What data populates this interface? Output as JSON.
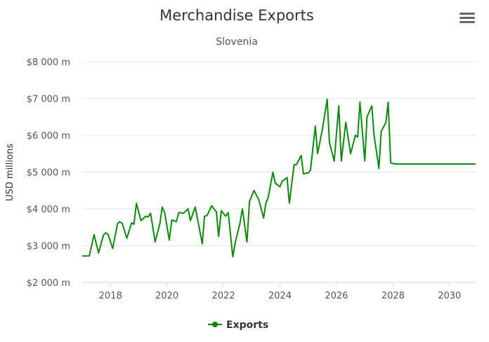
{
  "chart_data": {
    "type": "line",
    "title": "Merchandise Exports",
    "subtitle": "Slovenia",
    "ylabel": "USD millions",
    "xlabel": "",
    "ylim": [
      2000,
      8000
    ],
    "xlim": [
      2017.0,
      2030.95
    ],
    "yticks": [
      2000,
      3000,
      4000,
      5000,
      6000,
      7000,
      8000
    ],
    "ytick_labels": [
      "$2 000 m",
      "$3 000 m",
      "$4 000 m",
      "$5 000 m",
      "$6 000 m",
      "$7 000 m",
      "$8 000 m"
    ],
    "xticks": [
      2018,
      2020,
      2022,
      2024,
      2026,
      2028,
      2030
    ],
    "xtick_labels": [
      "2018",
      "2020",
      "2022",
      "2024",
      "2026",
      "2028",
      "2030"
    ],
    "grid": true,
    "legend_position": "bottom",
    "series": [
      {
        "name": "Exports",
        "color": "#0b8a0b",
        "x": [
          2017.0,
          2017.25,
          2017.42,
          2017.58,
          2017.75,
          2017.83,
          2017.92,
          2018.08,
          2018.25,
          2018.33,
          2018.42,
          2018.58,
          2018.75,
          2018.83,
          2018.92,
          2019.08,
          2019.25,
          2019.33,
          2019.42,
          2019.58,
          2019.75,
          2019.83,
          2019.92,
          2020.08,
          2020.17,
          2020.33,
          2020.42,
          2020.58,
          2020.75,
          2020.83,
          2021.0,
          2021.25,
          2021.33,
          2021.42,
          2021.58,
          2021.75,
          2021.83,
          2021.92,
          2022.08,
          2022.17,
          2022.33,
          2022.42,
          2022.58,
          2022.67,
          2022.83,
          2022.92,
          2023.08,
          2023.25,
          2023.42,
          2023.5,
          2023.58,
          2023.75,
          2023.83,
          2024.0,
          2024.08,
          2024.25,
          2024.33,
          2024.5,
          2024.58,
          2024.75,
          2024.83,
          2025.0,
          2025.08,
          2025.25,
          2025.33,
          2025.5,
          2025.67,
          2025.75,
          2025.92,
          2026.08,
          2026.17,
          2026.33,
          2026.5,
          2026.67,
          2026.75,
          2026.83,
          2027.0,
          2027.08,
          2027.25,
          2027.33,
          2027.5,
          2027.58,
          2027.75,
          2027.83,
          2027.92,
          2028.08,
          2028.25,
          2028.33,
          2028.42,
          2028.58,
          2028.67,
          2028.75,
          2028.92,
          2029.0,
          2029.08,
          2029.25,
          2029.33,
          2029.5,
          2029.58,
          2029.75,
          2029.83,
          2030.0,
          2030.08,
          2030.25,
          2030.33,
          2030.5,
          2030.58,
          2030.75,
          2030.83,
          2030.92
        ],
        "values": [
          2720,
          2720,
          3300,
          2800,
          3280,
          3350,
          3300,
          2920,
          3600,
          3650,
          3600,
          3200,
          3620,
          3580,
          4150,
          3680,
          3800,
          3780,
          3880,
          3100,
          3600,
          4050,
          3900,
          3150,
          3700,
          3650,
          3900,
          3880,
          4000,
          3680,
          4050,
          3050,
          3800,
          3820,
          4080,
          3920,
          3250,
          3950,
          3800,
          3900,
          2700,
          3100,
          3600,
          4000,
          3100,
          4200,
          4500,
          4250,
          3750,
          4150,
          4300,
          5000,
          4700,
          4600,
          4750,
          4850,
          4150,
          5200,
          5200,
          5450,
          4950,
          4980,
          5050,
          6250,
          5500,
          6150,
          6980,
          5800,
          5300,
          6800,
          5300,
          6350,
          5500,
          6000,
          5950,
          6900,
          5300,
          6500,
          6800,
          6000,
          5100,
          6100,
          6350,
          6900,
          5250,
          5220,
          5220,
          5220,
          5220,
          5220,
          5220,
          5220,
          5220,
          5220,
          5220,
          5220,
          5220,
          5220,
          5220,
          5220,
          5220,
          5220,
          5220,
          5220,
          5220,
          5220,
          5220,
          5220,
          5220,
          5220
        ]
      }
    ]
  },
  "menu": {
    "icon": "hamburger-menu-icon"
  }
}
